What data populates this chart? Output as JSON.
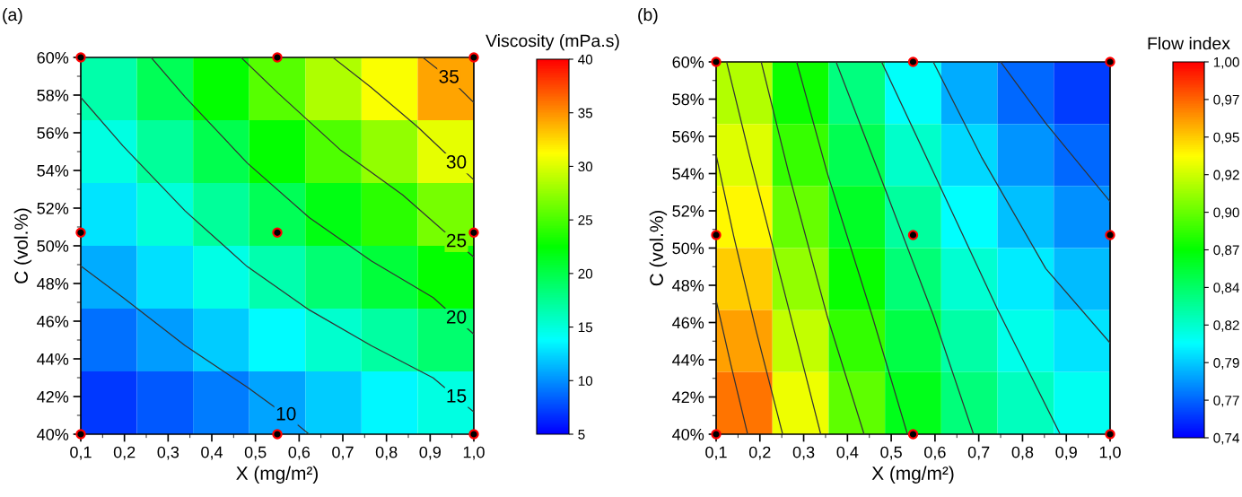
{
  "chart_data": [
    {
      "type": "heatmap",
      "title": "(a)",
      "xlabel": "X (mg/m²)",
      "ylabel": "C (vol.%)",
      "clabel": "Viscosity (mPa.s)",
      "colors": [
        "#0000ff",
        "#00ffff",
        "#00ff00",
        "#ffff00",
        "#ff0000"
      ],
      "xlim": [
        0.1,
        1.0
      ],
      "xticks": [
        {
          "value": 0.1,
          "label": "0,1"
        },
        {
          "value": 0.2,
          "label": "0,2"
        },
        {
          "value": 0.3,
          "label": "0,3"
        },
        {
          "value": 0.4,
          "label": "0,4"
        },
        {
          "value": 0.5,
          "label": "0,5"
        },
        {
          "value": 0.6,
          "label": "0,6"
        },
        {
          "value": 0.7,
          "label": "0,7"
        },
        {
          "value": 0.8,
          "label": "0,8"
        },
        {
          "value": 0.9,
          "label": "0,9"
        },
        {
          "value": 1.0,
          "label": "1,0"
        }
      ],
      "ylim": [
        40,
        60
      ],
      "yticks": [
        {
          "value": 40,
          "label": "40%"
        },
        {
          "value": 42,
          "label": "42%"
        },
        {
          "value": 44,
          "label": "44%"
        },
        {
          "value": 46,
          "label": "46%"
        },
        {
          "value": 48,
          "label": "48%"
        },
        {
          "value": 50,
          "label": "50%"
        },
        {
          "value": 52,
          "label": "52%"
        },
        {
          "value": 54,
          "label": "54%"
        },
        {
          "value": 56,
          "label": "56%"
        },
        {
          "value": 58,
          "label": "58%"
        },
        {
          "value": 60,
          "label": "60%"
        }
      ],
      "clim": [
        5,
        40
      ],
      "cticks": [
        5,
        10,
        15,
        20,
        25,
        30,
        35,
        40
      ],
      "cells": [
        [
          16.7,
          19.6,
          22.5,
          25.5,
          28.4,
          31.0,
          34.3
        ],
        [
          14.8,
          17.3,
          19.8,
          22.6,
          25.1,
          27.5,
          30.4
        ],
        [
          12.8,
          15.0,
          17.2,
          19.6,
          21.9,
          24.0,
          26.5
        ],
        [
          10.9,
          12.7,
          14.6,
          16.6,
          18.6,
          20.5,
          22.6
        ],
        [
          8.9,
          10.4,
          12.0,
          13.7,
          15.4,
          17.0,
          18.7
        ],
        [
          7.0,
          8.1,
          9.3,
          10.7,
          12.1,
          13.5,
          14.8
        ]
      ],
      "series": [
        {
          "type": "line",
          "color": "#333333",
          "x": [
            0.1,
            0.197,
            0.339,
            0.481,
            0.57,
            0.623
          ],
          "values": [
            48.93,
            47.25,
            44.7,
            42.5,
            41.0,
            40
          ]
        },
        {
          "type": "line",
          "color": "#333333",
          "x": [
            0.1,
            0.197,
            0.339,
            0.481,
            0.623,
            0.765,
            0.907,
            0.96,
            1.0
          ],
          "values": [
            57.88,
            55.29,
            51.85,
            48.9,
            46.6,
            44.7,
            42.99,
            41.95,
            41.18
          ]
        },
        {
          "type": "line",
          "color": "#333333",
          "x": [
            0.261,
            0.339,
            0.481,
            0.623,
            0.765,
            0.907,
            0.96,
            1.0
          ],
          "values": [
            60,
            57.9,
            54.4,
            51.5,
            49.2,
            47.25,
            46.14,
            45.3
          ]
        },
        {
          "type": "line",
          "color": "#333333",
          "x": [
            0.467,
            0.552,
            0.694,
            0.837,
            0.96,
            1.0
          ],
          "values": [
            60,
            58.1,
            55.1,
            52.7,
            50.2,
            49.4
          ]
        },
        {
          "type": "line",
          "color": "#333333",
          "x": [
            0.677,
            0.765,
            0.872,
            0.96,
            1.0
          ],
          "values": [
            60,
            58.4,
            56.3,
            54.37,
            53.5
          ]
        },
        {
          "type": "line",
          "color": "#333333",
          "x": [
            0.883,
            0.943,
            1.0
          ],
          "values": [
            60,
            58.9,
            57.6
          ]
        },
        {
          "type": "scatter",
          "color": "#000000",
          "x": [
            0.1,
            0.55,
            1.0,
            0.1,
            0.55,
            1.0,
            0.1,
            0.55,
            1.0
          ],
          "values": [
            40,
            40,
            40,
            50.7,
            50.7,
            50.7,
            60,
            60,
            60
          ],
          "marker": "circle"
        }
      ],
      "grid": false,
      "annotations": [
        {
          "text": "10",
          "x": 0.57,
          "y": 41.0
        },
        {
          "text": "15",
          "x": 0.96,
          "y": 41.95
        },
        {
          "text": "20",
          "x": 0.96,
          "y": 46.14
        },
        {
          "text": "25",
          "x": 0.96,
          "y": 50.2
        },
        {
          "text": "30",
          "x": 0.96,
          "y": 54.37
        },
        {
          "text": "35",
          "x": 0.943,
          "y": 58.9
        }
      ]
    },
    {
      "type": "heatmap",
      "title": "(b)",
      "xlabel": "X (mg/m²)",
      "ylabel": "C (vol.%)",
      "clabel": "Flow index",
      "colors": [
        "#0000ff",
        "#00ffff",
        "#00ff00",
        "#ffff00",
        "#ff0000"
      ],
      "xlim": [
        0.1,
        1.0
      ],
      "xticks": [
        {
          "value": 0.1,
          "label": "0,1"
        },
        {
          "value": 0.2,
          "label": "0,2"
        },
        {
          "value": 0.3,
          "label": "0,3"
        },
        {
          "value": 0.4,
          "label": "0,4"
        },
        {
          "value": 0.5,
          "label": "0,5"
        },
        {
          "value": 0.6,
          "label": "0,6"
        },
        {
          "value": 0.7,
          "label": "0,7"
        },
        {
          "value": 0.8,
          "label": "0,8"
        },
        {
          "value": 0.9,
          "label": "0,9"
        },
        {
          "value": 1.0,
          "label": "1,0"
        }
      ],
      "ylim": [
        40,
        60
      ],
      "yticks": [
        {
          "value": 40,
          "label": "40%"
        },
        {
          "value": 42,
          "label": "42%"
        },
        {
          "value": 44,
          "label": "44%"
        },
        {
          "value": 46,
          "label": "46%"
        },
        {
          "value": 48,
          "label": "48%"
        },
        {
          "value": 50,
          "label": "50%"
        },
        {
          "value": 52,
          "label": "52%"
        },
        {
          "value": 54,
          "label": "54%"
        },
        {
          "value": 56,
          "label": "56%"
        },
        {
          "value": 58,
          "label": "58%"
        },
        {
          "value": 60,
          "label": "60%"
        }
      ],
      "clim": [
        0.74,
        1.0
      ],
      "cticks": [
        {
          "value": 0.74,
          "label": "0,74"
        },
        {
          "value": 0.766,
          "label": "0,77"
        },
        {
          "value": 0.792,
          "label": "0,79"
        },
        {
          "value": 0.818,
          "label": "0,82"
        },
        {
          "value": 0.844,
          "label": "0,84"
        },
        {
          "value": 0.87,
          "label": "0,87"
        },
        {
          "value": 0.896,
          "label": "0,90"
        },
        {
          "value": 0.922,
          "label": "0,92"
        },
        {
          "value": 0.948,
          "label": "0,95"
        },
        {
          "value": 0.974,
          "label": "0,97"
        },
        {
          "value": 1.0,
          "label": "1,00"
        }
      ],
      "cells": [
        [
          0.915,
          0.873,
          0.838,
          0.807,
          0.784,
          0.767,
          0.756
        ],
        [
          0.926,
          0.884,
          0.849,
          0.819,
          0.795,
          0.778,
          0.767
        ],
        [
          0.937,
          0.896,
          0.86,
          0.83,
          0.806,
          0.789,
          0.777
        ],
        [
          0.948,
          0.907,
          0.872,
          0.84,
          0.817,
          0.8,
          0.788
        ],
        [
          0.959,
          0.919,
          0.883,
          0.852,
          0.828,
          0.811,
          0.798
        ],
        [
          0.97,
          0.93,
          0.894,
          0.863,
          0.839,
          0.822,
          0.809
        ]
      ],
      "series": [
        {
          "type": "line",
          "color": "#333333",
          "x": [
            0.1,
            0.133,
            0.172
          ],
          "values": [
            47.2,
            43.8,
            40
          ]
        },
        {
          "type": "line",
          "color": "#333333",
          "x": [
            0.1,
            0.14,
            0.192,
            0.252
          ],
          "values": [
            55.0,
            50.66,
            45.5,
            40
          ]
        },
        {
          "type": "line",
          "color": "#333333",
          "x": [
            0.124,
            0.177,
            0.251,
            0.339
          ],
          "values": [
            60,
            54.9,
            48.1,
            40
          ]
        },
        {
          "type": "line",
          "color": "#333333",
          "x": [
            0.203,
            0.265,
            0.353,
            0.438
          ],
          "values": [
            60,
            54.1,
            46.4,
            40
          ]
        },
        {
          "type": "line",
          "color": "#333333",
          "x": [
            0.284,
            0.353,
            0.456,
            0.537
          ],
          "values": [
            60,
            54.1,
            46.4,
            40
          ]
        },
        {
          "type": "line",
          "color": "#333333",
          "x": [
            0.374,
            0.471,
            0.596,
            0.688
          ],
          "values": [
            60,
            54.1,
            46.4,
            40
          ]
        },
        {
          "type": "line",
          "color": "#333333",
          "x": [
            0.478,
            0.596,
            0.743,
            0.886
          ],
          "values": [
            60,
            54.1,
            46.7,
            40
          ]
        },
        {
          "type": "line",
          "color": "#333333",
          "x": [
            0.596,
            0.706,
            0.853,
            1.0
          ],
          "values": [
            60,
            54.9,
            48.9,
            44.9
          ]
        },
        {
          "type": "line",
          "color": "#333333",
          "x": [
            0.75,
            0.853,
            1.0
          ],
          "values": [
            60,
            56.7,
            52.5
          ]
        },
        {
          "type": "scatter",
          "color": "#000000",
          "x": [
            0.1,
            0.55,
            1.0,
            0.1,
            0.55,
            1.0,
            0.1,
            0.55,
            1.0
          ],
          "values": [
            40,
            40,
            40,
            50.7,
            50.7,
            50.7,
            60,
            60,
            60
          ],
          "marker": "circle"
        }
      ],
      "grid": false
    }
  ]
}
